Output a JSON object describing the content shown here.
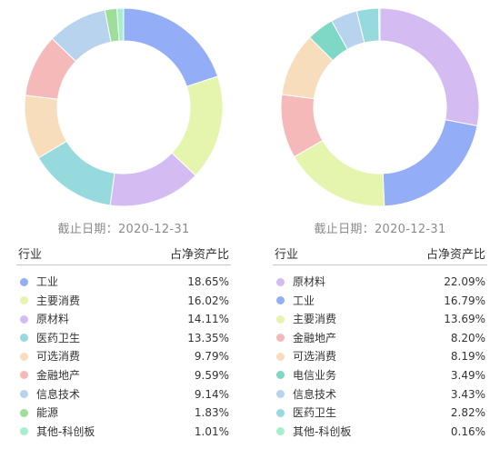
{
  "colors": {
    "blue": "#93adf7",
    "lime": "#e6f5ad",
    "purple": "#d4bcf3",
    "teal": "#97dade",
    "peach": "#f8ddbd",
    "pink": "#f6b9ba",
    "skyblue": "#b8d3ee",
    "green": "#9fde98",
    "mint": "#a5f0cc",
    "darkteal": "#7fd7c5"
  },
  "chart_data": [
    {
      "type": "pie",
      "date_label": "截止日期：2020-12-31",
      "header": {
        "industry": "行业",
        "ratio": "占净资产比"
      },
      "slices": [
        {
          "name": "工业",
          "value": 18.65,
          "value_label": "18.65%",
          "color": "#93adf7"
        },
        {
          "name": "主要消费",
          "value": 16.02,
          "value_label": "16.02%",
          "color": "#e6f5ad"
        },
        {
          "name": "原材料",
          "value": 14.11,
          "value_label": "14.11%",
          "color": "#d4bcf3"
        },
        {
          "name": "医药卫生",
          "value": 13.35,
          "value_label": "13.35%",
          "color": "#97dade"
        },
        {
          "name": "可选消费",
          "value": 9.79,
          "value_label": "9.79%",
          "color": "#f8ddbd"
        },
        {
          "name": "金融地产",
          "value": 9.59,
          "value_label": "9.59%",
          "color": "#f6b9ba"
        },
        {
          "name": "信息技术",
          "value": 9.14,
          "value_label": "9.14%",
          "color": "#b8d3ee"
        },
        {
          "name": "能源",
          "value": 1.83,
          "value_label": "1.83%",
          "color": "#9fde98"
        },
        {
          "name": "其他-科创板",
          "value": 1.01,
          "value_label": "1.01%",
          "color": "#a5f0cc"
        }
      ]
    },
    {
      "type": "pie",
      "date_label": "截止日期：2020-12-31",
      "header": {
        "industry": "行业",
        "ratio": "占净资产比"
      },
      "slices": [
        {
          "name": "原材料",
          "value": 22.09,
          "value_label": "22.09%",
          "color": "#d4bcf3"
        },
        {
          "name": "工业",
          "value": 16.79,
          "value_label": "16.79%",
          "color": "#93adf7"
        },
        {
          "name": "主要消费",
          "value": 13.69,
          "value_label": "13.69%",
          "color": "#e6f5ad"
        },
        {
          "name": "金融地产",
          "value": 8.2,
          "value_label": "8.20%",
          "color": "#f6b9ba"
        },
        {
          "name": "可选消费",
          "value": 8.19,
          "value_label": "8.19%",
          "color": "#f8ddbd"
        },
        {
          "name": "电信业务",
          "value": 3.49,
          "value_label": "3.49%",
          "color": "#7fd7c5"
        },
        {
          "name": "信息技术",
          "value": 3.43,
          "value_label": "3.43%",
          "color": "#b8d3ee"
        },
        {
          "name": "医药卫生",
          "value": 2.82,
          "value_label": "2.82%",
          "color": "#97dade"
        },
        {
          "name": "其他-科创板",
          "value": 0.16,
          "value_label": "0.16%",
          "color": "#a5f0cc"
        }
      ]
    }
  ]
}
